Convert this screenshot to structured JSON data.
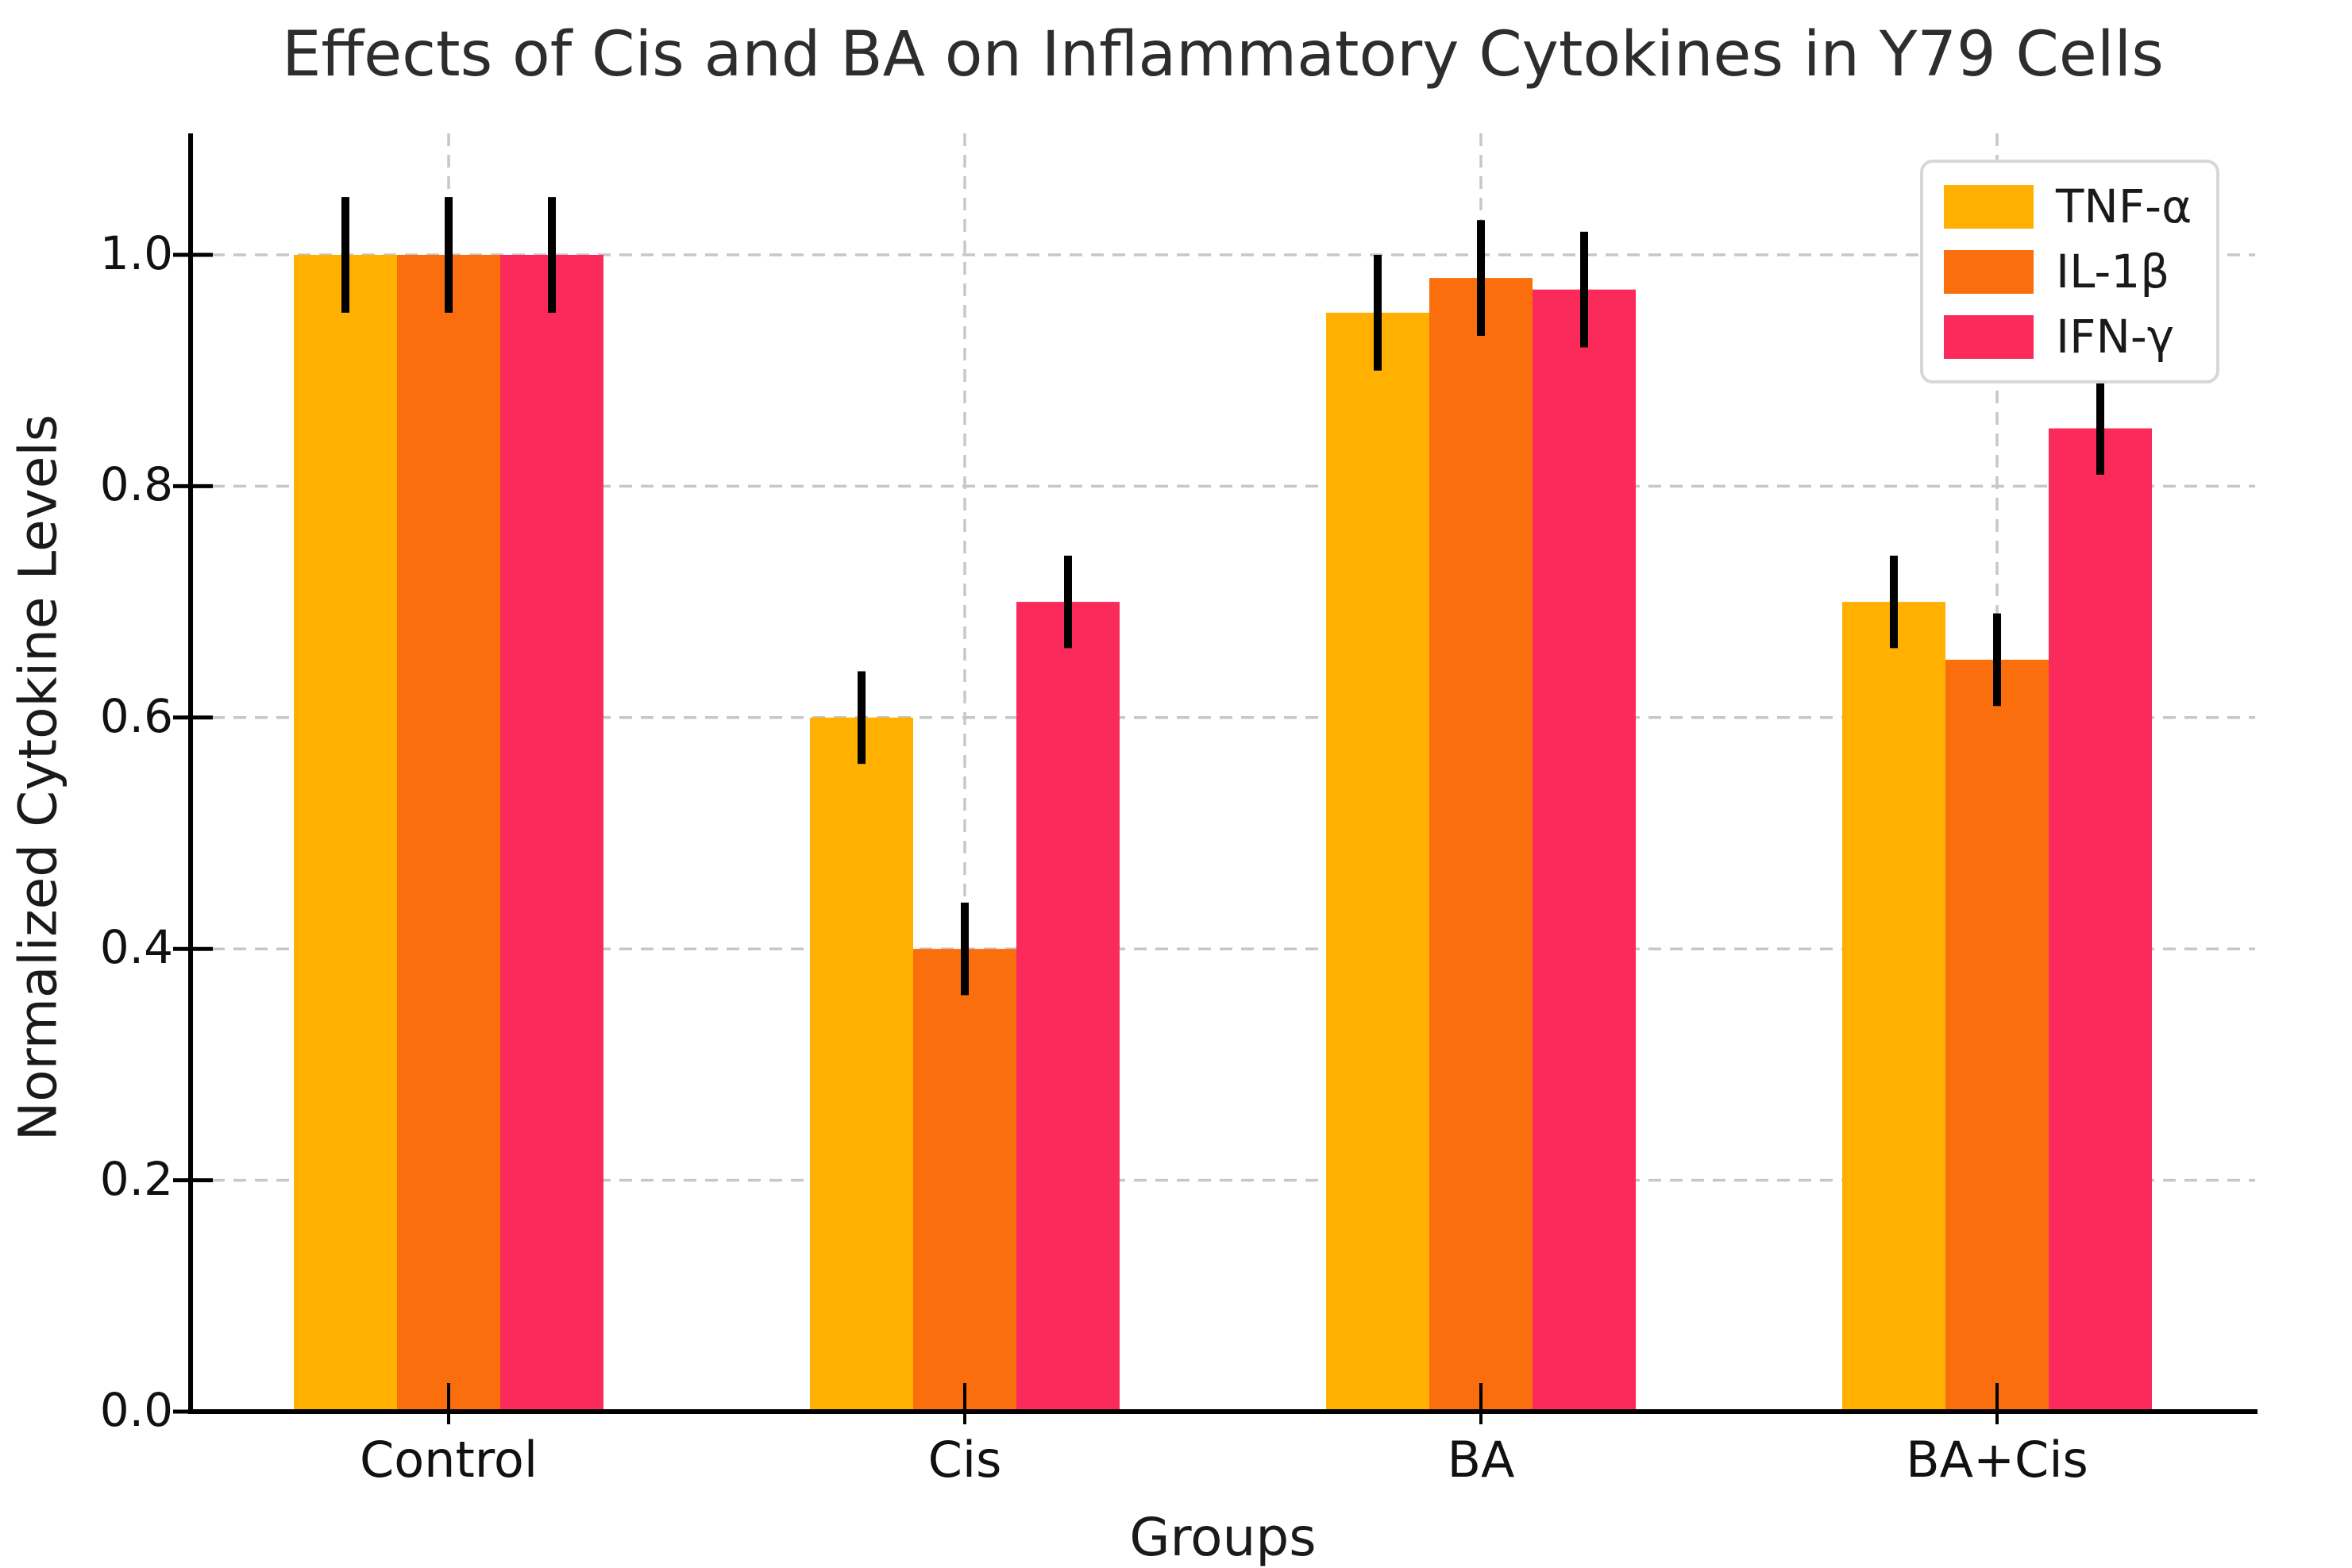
{
  "chart_data": {
    "type": "bar",
    "title": "Effects of Cis and BA on Inflammatory Cytokines in Y79 Cells",
    "xlabel": "Groups",
    "ylabel": "Normalized Cytokine Levels",
    "categories": [
      "Control",
      "Cis",
      "BA",
      "BA+Cis"
    ],
    "yticks": [
      0.0,
      0.2,
      0.4,
      0.6,
      0.8,
      1.0
    ],
    "ylim": [
      0,
      1.105
    ],
    "grid": "dashed, horizontal and vertical",
    "legend_position": "upper right",
    "series": [
      {
        "name": "TNF-α",
        "color": "#FFB000",
        "values": [
          1.0,
          0.6,
          0.95,
          0.7
        ],
        "errors": [
          0.05,
          0.04,
          0.05,
          0.04
        ]
      },
      {
        "name": "IL-1β",
        "color": "#FB6E0E",
        "values": [
          1.0,
          0.4,
          0.98,
          0.65
        ],
        "errors": [
          0.05,
          0.04,
          0.05,
          0.04
        ]
      },
      {
        "name": "IFN-γ",
        "color": "#FA2B5B",
        "values": [
          1.0,
          0.7,
          0.97,
          0.85
        ],
        "errors": [
          0.05,
          0.04,
          0.05,
          0.04
        ]
      }
    ],
    "error_bar_color": "#000000",
    "gridline_color": "#c7c7c7",
    "spine_color": "#000000",
    "title_color": "#2d2d2d"
  }
}
